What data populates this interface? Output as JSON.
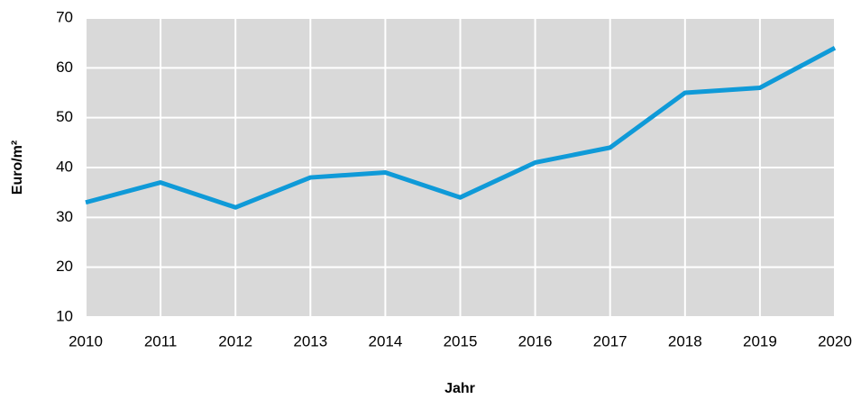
{
  "chart_data": {
    "type": "line",
    "x_label": "Jahr",
    "y_label": "Euro/m²",
    "x": [
      2010,
      2011,
      2012,
      2013,
      2014,
      2015,
      2016,
      2017,
      2018,
      2019,
      2020
    ],
    "series": [
      {
        "color": "#0f9ad8",
        "values": [
          33,
          37,
          32,
          38,
          39,
          34,
          41,
          44,
          55,
          56,
          64
        ]
      }
    ],
    "xlim": [
      2010,
      2020
    ],
    "xticks": [
      2010,
      2011,
      2012,
      2013,
      2014,
      2015,
      2016,
      2017,
      2018,
      2019,
      2020
    ],
    "ylim": [
      10,
      70
    ],
    "yticks": [
      10,
      20,
      30,
      40,
      50,
      60,
      70
    ],
    "grid": true
  }
}
